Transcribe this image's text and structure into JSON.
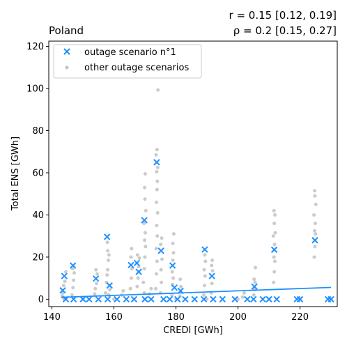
{
  "chart_data": {
    "type": "scatter",
    "title_left": "Poland",
    "title_right_line1": "r = 0.15 [0.12, 0.19]",
    "title_right_line2": "ρ = 0.2 [0.15, 0.27]",
    "xlabel": "CREDI [GWh]",
    "ylabel": "Total ENS [GWh]",
    "xlim": [
      139,
      232
    ],
    "ylim": [
      -3.5,
      122.5
    ],
    "xticks": [
      140,
      160,
      180,
      200,
      220
    ],
    "yticks": [
      0,
      20,
      40,
      60,
      80,
      100,
      120
    ],
    "legend_position": "top-left",
    "colors": {
      "highlight": "#1e90ff",
      "others": "#a9a9a9",
      "trend": "#1e90ff"
    },
    "series": [
      {
        "name": "outage scenario n°1",
        "marker": "x",
        "points": [
          [
            143.5,
            4.2
          ],
          [
            144.0,
            11.0
          ],
          [
            146.8,
            16.0
          ],
          [
            154.2,
            9.8
          ],
          [
            157.8,
            29.6
          ],
          [
            158.6,
            6.5
          ],
          [
            165.5,
            16.2
          ],
          [
            167.4,
            17.2
          ],
          [
            168.0,
            13.0
          ],
          [
            169.8,
            37.5
          ],
          [
            173.8,
            65.0
          ],
          [
            175.2,
            23.0
          ],
          [
            178.9,
            16.0
          ],
          [
            179.5,
            5.5
          ],
          [
            181.5,
            4.0
          ],
          [
            189.3,
            23.6
          ],
          [
            191.6,
            11.0
          ],
          [
            205.3,
            6.0
          ],
          [
            211.7,
            23.5
          ],
          [
            224.8,
            28.0
          ],
          [
            144.5,
            0.0
          ],
          [
            147.0,
            0.0
          ],
          [
            150.0,
            0.0
          ],
          [
            152.0,
            0.0
          ],
          [
            155.0,
            0.0
          ],
          [
            158.0,
            0.0
          ],
          [
            161.0,
            0.0
          ],
          [
            164.0,
            0.0
          ],
          [
            166.5,
            0.0
          ],
          [
            170.0,
            0.0
          ],
          [
            172.0,
            0.0
          ],
          [
            176.0,
            0.0
          ],
          [
            178.0,
            0.0
          ],
          [
            180.5,
            0.0
          ],
          [
            183.0,
            0.0
          ],
          [
            186.0,
            0.0
          ],
          [
            189.0,
            0.0
          ],
          [
            192.0,
            0.0
          ],
          [
            195.0,
            0.0
          ],
          [
            199.0,
            0.0
          ],
          [
            203.0,
            0.0
          ],
          [
            205.0,
            0.0
          ],
          [
            208.0,
            0.0
          ],
          [
            210.0,
            0.0
          ],
          [
            212.5,
            0.0
          ],
          [
            219.0,
            0.0
          ],
          [
            220.0,
            0.0
          ],
          [
            229.0,
            0.0
          ],
          [
            230.0,
            0.0
          ]
        ]
      },
      {
        "name": "other outage scenarios",
        "marker": "dot",
        "points": [
          [
            143.3,
            1.5
          ],
          [
            143.5,
            3.0
          ],
          [
            143.8,
            6.5
          ],
          [
            144.2,
            8.5
          ],
          [
            144.5,
            13.0
          ],
          [
            143.7,
            0.8
          ],
          [
            146.5,
            2.0
          ],
          [
            146.8,
            5.5
          ],
          [
            147.0,
            9.0
          ],
          [
            147.2,
            12.5
          ],
          [
            146.7,
            14.5
          ],
          [
            153.8,
            2.5
          ],
          [
            154.0,
            5.0
          ],
          [
            154.4,
            7.5
          ],
          [
            154.6,
            12.0
          ],
          [
            154.2,
            14.0
          ],
          [
            157.3,
            3.0
          ],
          [
            157.6,
            8.0
          ],
          [
            157.8,
            11.5
          ],
          [
            158.0,
            14.0
          ],
          [
            158.2,
            18.5
          ],
          [
            158.4,
            21.0
          ],
          [
            158.0,
            23.0
          ],
          [
            157.9,
            27.0
          ],
          [
            158.3,
            2.0
          ],
          [
            158.7,
            4.5
          ],
          [
            162.5,
            2.0
          ],
          [
            163.0,
            4.0
          ],
          [
            165.3,
            5.0
          ],
          [
            165.6,
            10.0
          ],
          [
            165.8,
            14.5
          ],
          [
            165.5,
            20.0
          ],
          [
            165.7,
            24.0
          ],
          [
            167.5,
            6.0
          ],
          [
            167.8,
            10.0
          ],
          [
            168.0,
            15.5
          ],
          [
            168.2,
            19.5
          ],
          [
            167.6,
            21.0
          ],
          [
            169.5,
            8.0
          ],
          [
            169.8,
            14.5
          ],
          [
            170.0,
            20.0
          ],
          [
            170.2,
            25.0
          ],
          [
            169.9,
            28.0
          ],
          [
            170.1,
            31.5
          ],
          [
            169.7,
            36.0
          ],
          [
            170.3,
            42.0
          ],
          [
            170.0,
            47.5
          ],
          [
            169.9,
            53.0
          ],
          [
            170.1,
            59.5
          ],
          [
            169.8,
            3.0
          ],
          [
            171.5,
            2.5
          ],
          [
            172.0,
            5.0
          ],
          [
            173.5,
            5.0
          ],
          [
            173.7,
            12.0
          ],
          [
            173.9,
            18.0
          ],
          [
            173.6,
            24.0
          ],
          [
            174.0,
            30.0
          ],
          [
            173.8,
            35.0
          ],
          [
            174.1,
            41.0
          ],
          [
            173.7,
            46.0
          ],
          [
            173.9,
            52.0
          ],
          [
            174.0,
            56.0
          ],
          [
            173.8,
            60.5
          ],
          [
            174.1,
            62.5
          ],
          [
            173.6,
            68.5
          ],
          [
            173.9,
            71.0
          ],
          [
            174.2,
            99.3
          ],
          [
            175.0,
            3.0
          ],
          [
            175.3,
            8.0
          ],
          [
            175.2,
            14.0
          ],
          [
            175.5,
            19.0
          ],
          [
            175.1,
            26.0
          ],
          [
            175.4,
            29.0
          ],
          [
            178.7,
            2.0
          ],
          [
            178.9,
            7.0
          ],
          [
            179.1,
            10.0
          ],
          [
            178.8,
            13.0
          ],
          [
            179.0,
            18.5
          ],
          [
            179.2,
            22.0
          ],
          [
            179.3,
            31.0
          ],
          [
            179.0,
            26.5
          ],
          [
            181.3,
            1.5
          ],
          [
            181.6,
            6.0
          ],
          [
            181.4,
            9.5
          ],
          [
            189.0,
            2.0
          ],
          [
            189.2,
            6.5
          ],
          [
            189.4,
            11.0
          ],
          [
            189.1,
            14.0
          ],
          [
            189.5,
            18.0
          ],
          [
            189.3,
            21.0
          ],
          [
            191.4,
            3.0
          ],
          [
            191.6,
            7.5
          ],
          [
            191.8,
            13.5
          ],
          [
            191.5,
            16.0
          ],
          [
            191.7,
            18.5
          ],
          [
            201.5,
            1.0
          ],
          [
            202.0,
            3.0
          ],
          [
            205.1,
            2.0
          ],
          [
            205.3,
            4.5
          ],
          [
            205.5,
            8.0
          ],
          [
            205.2,
            9.5
          ],
          [
            205.6,
            15.0
          ],
          [
            211.5,
            8.0
          ],
          [
            211.7,
            13.0
          ],
          [
            211.9,
            18.0
          ],
          [
            211.6,
            20.0
          ],
          [
            211.8,
            26.0
          ],
          [
            211.4,
            30.0
          ],
          [
            212.0,
            31.5
          ],
          [
            211.7,
            36.0
          ],
          [
            211.9,
            40.0
          ],
          [
            211.6,
            42.0
          ],
          [
            224.6,
            20.0
          ],
          [
            224.8,
            25.0
          ],
          [
            225.0,
            31.0
          ],
          [
            224.7,
            32.5
          ],
          [
            224.9,
            36.0
          ],
          [
            224.5,
            40.0
          ],
          [
            225.1,
            45.0
          ],
          [
            224.8,
            49.0
          ],
          [
            224.7,
            51.5
          ],
          [
            144.0,
            0.0
          ],
          [
            150.0,
            0.0
          ],
          [
            160.0,
            0.0
          ],
          [
            170.0,
            0.0
          ],
          [
            180.0,
            0.0
          ],
          [
            190.0,
            0.0
          ],
          [
            200.0,
            0.0
          ],
          [
            210.0,
            0.0
          ],
          [
            220.0,
            0.0
          ],
          [
            230.0,
            0.0
          ]
        ]
      }
    ],
    "trendline": {
      "x": [
        143,
        230
      ],
      "y": [
        0.9,
        5.6
      ]
    }
  }
}
